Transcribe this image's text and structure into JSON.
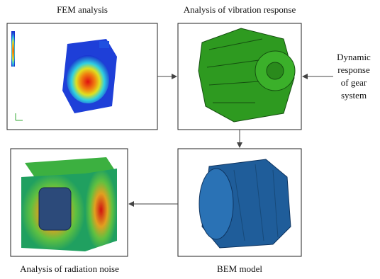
{
  "nodes": [
    {
      "label": "FEM analysis"
    },
    {
      "label": "Analysis of vibration response"
    },
    {
      "label": "BEM model"
    },
    {
      "label": "Analysis of radiation noise"
    }
  ],
  "input": {
    "lines": [
      "Dynamic",
      "response",
      "of gear",
      "system"
    ]
  }
}
